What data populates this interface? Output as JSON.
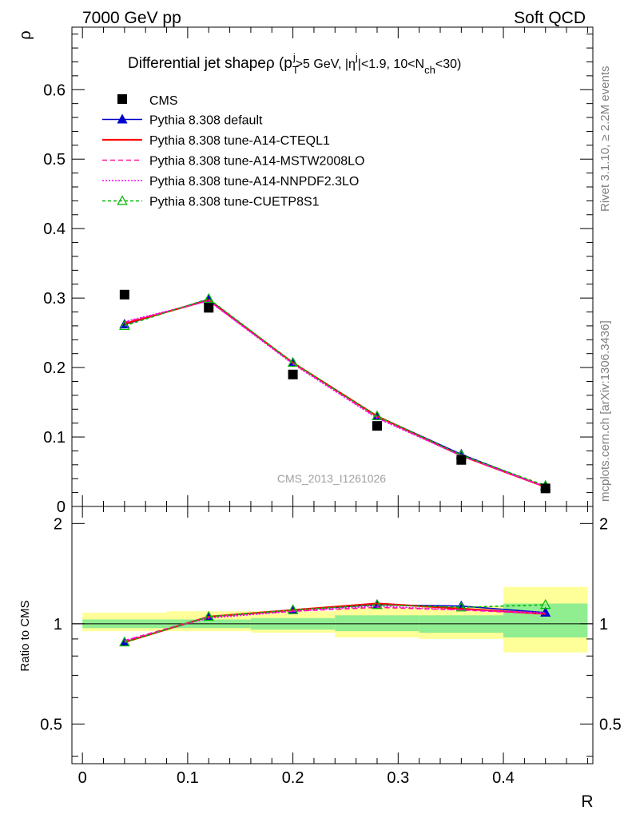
{
  "header": {
    "left": "7000 GeV pp",
    "right": "Soft QCD"
  },
  "side_labels": {
    "rivet": "Rivet 3.1.10, ≥ 2.2M events",
    "mcplots": "mcplots.cern.ch [arXiv:1306.3436]"
  },
  "chart_data": {
    "type": "line",
    "title": "Differential jet shapeρ (p_T^j>5 GeV, |η^j|<1.9, 10<N_ch<30)",
    "title_parts": {
      "main": "Differential jet shapeρ (p",
      "sub_T": "T",
      "sup_j1": "j",
      "mid1": ">5 GeV, |η",
      "sup_j2": "j",
      "mid2": "|<1.9, 10<N",
      "sub_ch": "ch",
      "end": "<30)"
    },
    "watermark": "CMS_2013_I1261026",
    "xlabel": "R",
    "ylabel": "ρ",
    "ratio_ylabel": "Ratio to CMS",
    "xlim": [
      -0.01,
      0.485
    ],
    "ylim": [
      0,
      0.69
    ],
    "ratio_ylim": [
      0.38,
      2.25
    ],
    "ratio_scale": "log",
    "x_ticks": [
      "0",
      "0.1",
      "0.2",
      "0.3",
      "0.4"
    ],
    "x_tick_values": [
      0,
      0.1,
      0.2,
      0.3,
      0.4
    ],
    "y_ticks": [
      "0",
      "0.1",
      "0.2",
      "0.3",
      "0.4",
      "0.5",
      "0.6"
    ],
    "y_tick_values": [
      0,
      0.1,
      0.2,
      0.3,
      0.4,
      0.5,
      0.6
    ],
    "ratio_ticks": [
      "0.5",
      "1",
      "2"
    ],
    "ratio_tick_values": [
      0.5,
      1,
      2
    ],
    "x": [
      0.04,
      0.12,
      0.2,
      0.28,
      0.36,
      0.44
    ],
    "bins": [
      [
        0.0,
        0.08
      ],
      [
        0.08,
        0.16
      ],
      [
        0.16,
        0.24
      ],
      [
        0.24,
        0.32
      ],
      [
        0.32,
        0.4
      ],
      [
        0.4,
        0.48
      ]
    ],
    "data": {
      "name": "CMS",
      "values": [
        0.305,
        0.286,
        0.19,
        0.116,
        0.067,
        0.026
      ],
      "color": "#000000"
    },
    "band_inner": [
      [
        0.97,
        1.03
      ],
      [
        0.97,
        1.03
      ],
      [
        0.96,
        1.04
      ],
      [
        0.95,
        1.06
      ],
      [
        0.94,
        1.06
      ],
      [
        0.91,
        1.15
      ]
    ],
    "band_outer": [
      [
        0.95,
        1.08
      ],
      [
        0.95,
        1.09
      ],
      [
        0.94,
        1.09
      ],
      [
        0.91,
        1.12
      ],
      [
        0.9,
        1.13
      ],
      [
        0.82,
        1.29
      ]
    ],
    "band_inner_color": "#90ee90",
    "band_outer_color": "#ffff99",
    "series": [
      {
        "name": "Pythia 8.308 default",
        "values": [
          0.262,
          0.298,
          0.207,
          0.13,
          0.075,
          0.028
        ],
        "ratio": [
          0.88,
          1.05,
          1.1,
          1.14,
          1.13,
          1.08
        ],
        "color": "#0000cc",
        "dash": "",
        "marker": "triangle-filled"
      },
      {
        "name": "Pythia 8.308 tune-A14-CTEQL1",
        "values": [
          0.263,
          0.297,
          0.207,
          0.13,
          0.073,
          0.028
        ],
        "ratio": [
          0.88,
          1.05,
          1.1,
          1.15,
          1.11,
          1.07
        ],
        "color": "#ff0000",
        "dash": "",
        "marker": "none"
      },
      {
        "name": "Pythia 8.308 tune-A14-MSTW2008LO",
        "values": [
          0.265,
          0.296,
          0.206,
          0.128,
          0.073,
          0.028
        ],
        "ratio": [
          0.89,
          1.05,
          1.09,
          1.12,
          1.1,
          1.07
        ],
        "color": "#ff1493",
        "dash": "6,4",
        "marker": "none"
      },
      {
        "name": "Pythia 8.308 tune-A14-NNPDF2.3LO",
        "values": [
          0.266,
          0.296,
          0.205,
          0.127,
          0.073,
          0.028
        ],
        "ratio": [
          0.89,
          1.04,
          1.09,
          1.13,
          1.1,
          1.08
        ],
        "color": "#ff00ff",
        "dash": "2,2",
        "marker": "none"
      },
      {
        "name": "Pythia 8.308 tune-CUETP8S1",
        "values": [
          0.26,
          0.299,
          0.207,
          0.13,
          0.074,
          0.03
        ],
        "ratio": [
          0.88,
          1.05,
          1.1,
          1.14,
          1.12,
          1.14
        ],
        "color": "#00b800",
        "dash": "4,3",
        "marker": "triangle-open"
      }
    ],
    "legend_placement": "top-left",
    "grid": false
  }
}
